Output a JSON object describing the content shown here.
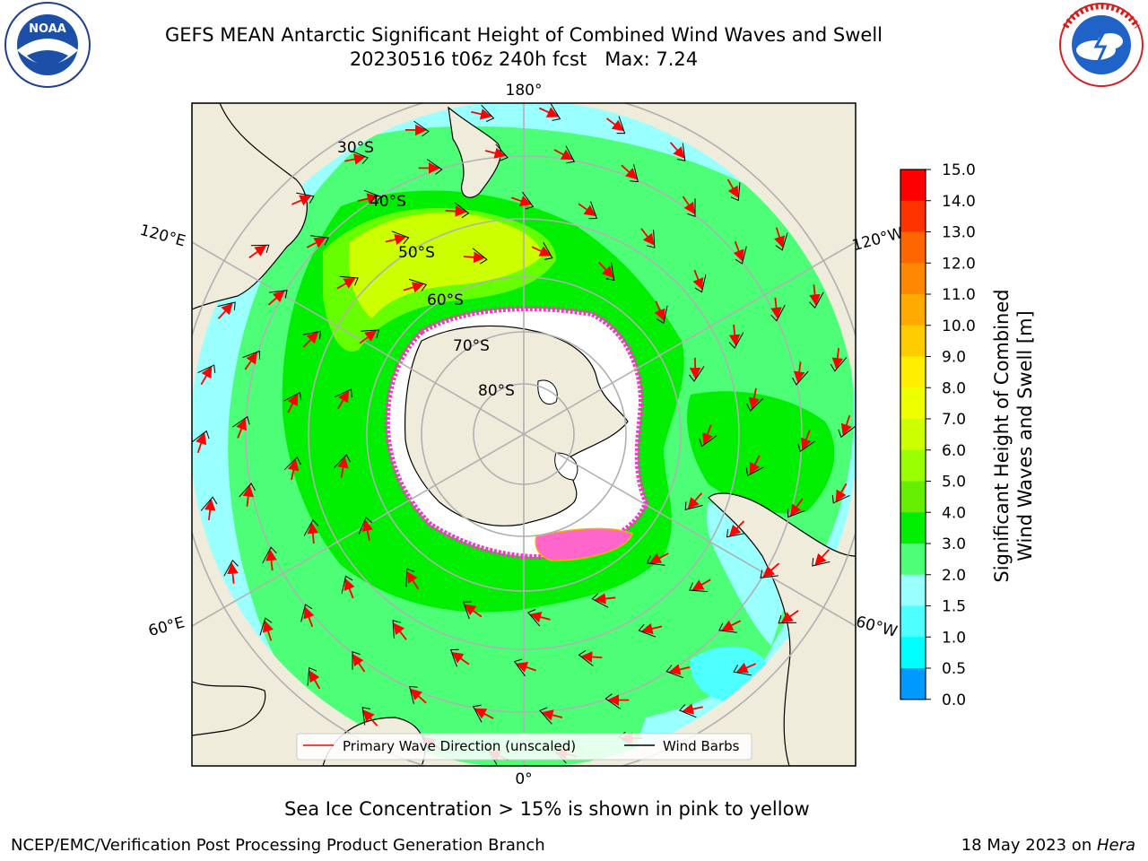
{
  "header": {
    "title_line1": "GEFS MEAN Antarctic Significant Height of Combined Wind Waves and Swell",
    "title_line2": "20230516 t06z 240h fcst   Max: 7.24"
  },
  "logos": {
    "left_text": "NOAA",
    "left_ring": "NATIONAL OCEANIC AND ATMOSPHERIC ADMINISTRATION · U.S. DEPARTMENT OF COMMERCE",
    "right_ring": "NATIONAL WEATHER SERVICE"
  },
  "map": {
    "projection": "south-polar-stereographic",
    "lon_labels": [
      "180°",
      "120°E",
      "120°W",
      "60°E",
      "60°W",
      "0°"
    ],
    "lat_labels": [
      "30°S",
      "40°S",
      "50°S",
      "60°S",
      "70°S",
      "80°S"
    ],
    "colors": {
      "land": "#efecdc",
      "ocean_3_4": "#4dff77",
      "ocean_4_5": "#00ee00",
      "ocean_5_6": "#66ff00",
      "ocean_6_7": "#ccff00",
      "ocean_2_3": "#99ffff",
      "ocean_1_5_2": "#4dffff",
      "sea_ice_edge": "#ff33cc",
      "wave_arrow": "#ff0000",
      "wind_barb": "#000000",
      "gridline": "#b0b0b0"
    },
    "legend": {
      "wave_direction": "Primary Wave Direction (unscaled)",
      "wind_barbs": "Wind Barbs"
    }
  },
  "colorbar": {
    "label_line1": "Significant Height of Combined",
    "label_line2": "Wind Waves and Swell [m]",
    "ticks": [
      "15.0",
      "14.0",
      "13.0",
      "12.0",
      "11.0",
      "10.0",
      "9.0",
      "8.0",
      "7.0",
      "6.0",
      "5.0",
      "4.0",
      "3.0",
      "2.0",
      "1.5",
      "1.0",
      "0.5",
      "0.0"
    ],
    "colors": [
      "#ff0000",
      "#ff3300",
      "#ff6600",
      "#ff8800",
      "#ffaa00",
      "#ffcc00",
      "#ffee00",
      "#eeff00",
      "#ccff00",
      "#99ff00",
      "#66ee00",
      "#00ee00",
      "#4dff77",
      "#99ffff",
      "#4dffff",
      "#00ffff",
      "#0099ff",
      "#0000ff"
    ]
  },
  "notes": {
    "sea_ice": "Sea Ice Concentration > 15% is shown in pink to yellow"
  },
  "footer": {
    "left": "NCEP/EMC/Verification Post Processing Product Generation Branch",
    "date": "18 May 2023 on ",
    "machine": "Hera"
  }
}
